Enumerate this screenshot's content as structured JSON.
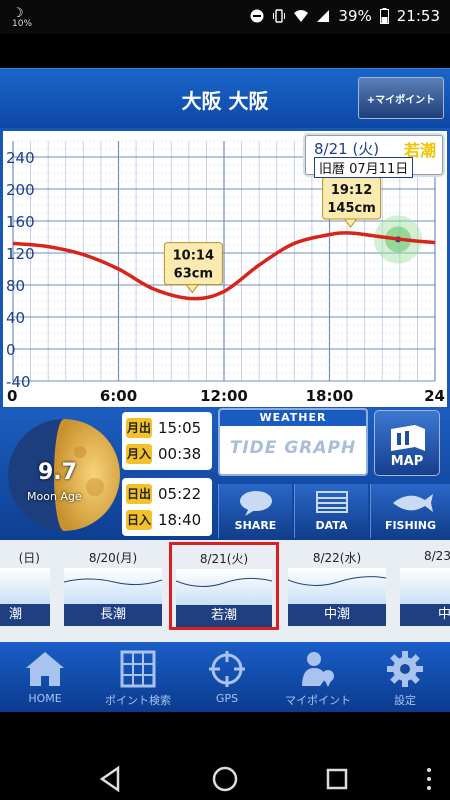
{
  "status_bar": {
    "moon_label": "☽",
    "small_battery": "10%",
    "battery": "39%",
    "time": "21:53"
  },
  "header": {
    "title": "大阪 大阪",
    "mypoint_button": "+マイポイント"
  },
  "chart_header": {
    "date": "8/21 (火)",
    "tide_type": "若潮",
    "lunar_date": "旧暦 07月11日"
  },
  "chart_data": {
    "type": "line",
    "x_ticks": [
      "0",
      "6:00",
      "12:00",
      "18:00",
      "24"
    ],
    "y_ticks": [
      "240",
      "200",
      "160",
      "120",
      "80",
      "40",
      "0",
      "-40"
    ],
    "ylim": [
      -40,
      260
    ],
    "xlim": [
      0,
      24
    ],
    "series": [
      {
        "points": [
          [
            0,
            132
          ],
          [
            2,
            128
          ],
          [
            4,
            118
          ],
          [
            6,
            100
          ],
          [
            8,
            75
          ],
          [
            10.2,
            63
          ],
          [
            12,
            72
          ],
          [
            14,
            105
          ],
          [
            16,
            132
          ],
          [
            18,
            143
          ],
          [
            19.2,
            145
          ],
          [
            21,
            140
          ],
          [
            22.5,
            136
          ],
          [
            24,
            133
          ]
        ]
      }
    ],
    "annotations": [
      {
        "time": "10:14",
        "level": "63cm",
        "x": 10.2,
        "y": 63
      },
      {
        "time": "19:12",
        "level": "145cm",
        "x": 19.2,
        "y": 145
      }
    ],
    "current_marker": {
      "x": 21.9,
      "y": 137
    }
  },
  "moon": {
    "age": "9.7",
    "age_label": "Moon Age"
  },
  "moon_times": {
    "rise_label": "月出",
    "rise": "15:05",
    "set_label": "月入",
    "set": "00:38"
  },
  "sun_times": {
    "rise_label": "日出",
    "rise": "05:22",
    "set_label": "日入",
    "set": "18:40"
  },
  "weather_button": {
    "top": "WEATHER",
    "sub": "TIDE GRAPH"
  },
  "map_button": "MAP",
  "actions": {
    "share": "SHARE",
    "data": "DATA",
    "fishing": "FISHING"
  },
  "days": [
    {
      "date": "(日)",
      "tide": "潮"
    },
    {
      "date": "8/20(月)",
      "tide": "長潮"
    },
    {
      "date": "8/21(火)",
      "tide": "若潮"
    },
    {
      "date": "8/22(水)",
      "tide": "中潮"
    },
    {
      "date": "8/23",
      "tide": "中"
    }
  ],
  "bottom_nav": {
    "home": "HOME",
    "point_search": "ポイント検索",
    "gps": "GPS",
    "mypoint": "マイポイント",
    "settings": "設定"
  },
  "colors": {
    "header_blue": "#1a66c9",
    "tide_line": "#d9241c",
    "label_yellow": "#f3c22a",
    "selected_border": "#d82020"
  }
}
